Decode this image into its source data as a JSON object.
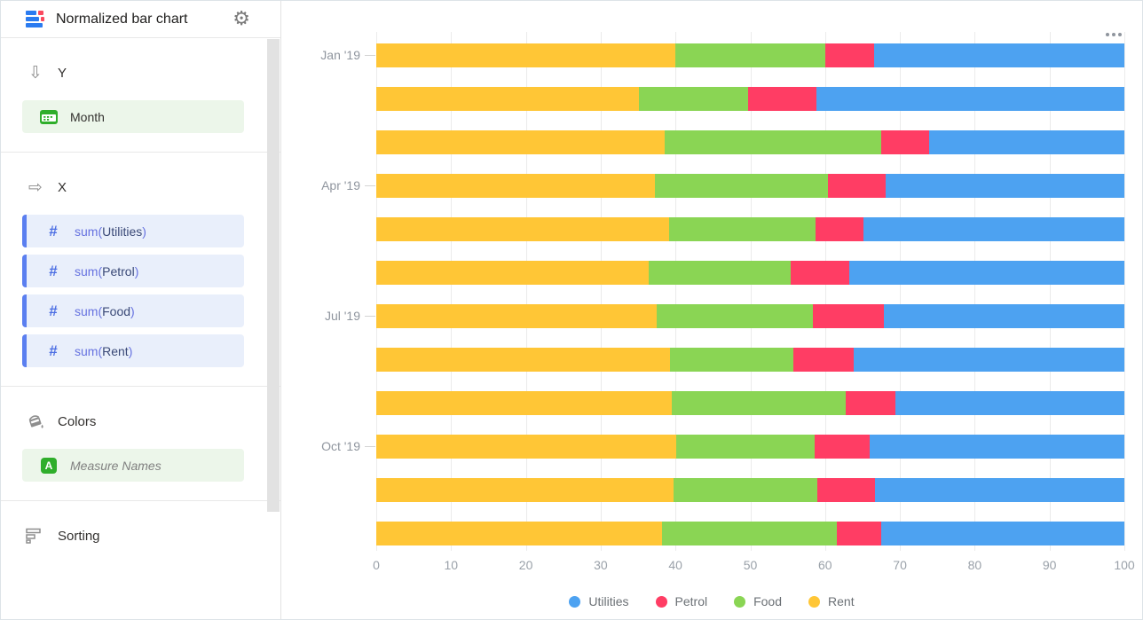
{
  "sidebar": {
    "header": {
      "title": "Normalized bar chart"
    },
    "sections": {
      "y": {
        "label": "Y",
        "arrow_glyph": "⇩",
        "fields": [
          {
            "label": "Month"
          }
        ]
      },
      "x": {
        "label": "X",
        "arrow_glyph": "⇨",
        "icon_glyph": "#",
        "fields": [
          {
            "prefix": "sum(",
            "name": "Utilities",
            "suffix": ")"
          },
          {
            "prefix": "sum(",
            "name": "Petrol",
            "suffix": ")"
          },
          {
            "prefix": "sum(",
            "name": "Food",
            "suffix": ")"
          },
          {
            "prefix": "sum(",
            "name": "Rent",
            "suffix": ")"
          }
        ]
      },
      "colors": {
        "label": "Colors",
        "fields": [
          {
            "label": "Measure Names",
            "icon_glyph": "A"
          }
        ]
      },
      "sorting": {
        "label": "Sorting"
      }
    },
    "gear_glyph": "⚙"
  },
  "chart_data": {
    "type": "bar",
    "orientation": "horizontal",
    "stacked": true,
    "normalized": true,
    "x_axis": {
      "range": [
        0,
        100
      ],
      "ticks": [
        0,
        10,
        20,
        30,
        40,
        50,
        60,
        70,
        80,
        90,
        100
      ]
    },
    "y_axis": {
      "categories_count": 12,
      "tick_labels": [
        "Jan '19",
        "Apr '19",
        "Jul '19",
        "Oct '19"
      ],
      "tick_positions": [
        0,
        3,
        6,
        9
      ]
    },
    "stack_order": [
      "Rent",
      "Food",
      "Petrol",
      "Utilities"
    ],
    "series": [
      {
        "name": "Utilities",
        "color": "#4DA2F1",
        "values": [
          33.4,
          41.2,
          26.1,
          31.9,
          34.9,
          36.8,
          32.2,
          36.2,
          30.6,
          34.0,
          33.3,
          32.5
        ]
      },
      {
        "name": "Petrol",
        "color": "#FF3D64",
        "values": [
          6.6,
          9.1,
          6.4,
          7.7,
          6.4,
          7.8,
          9.4,
          8.0,
          6.7,
          7.4,
          7.8,
          5.9
        ]
      },
      {
        "name": "Food",
        "color": "#8AD554",
        "values": [
          20.0,
          14.6,
          29.0,
          23.1,
          19.6,
          19.0,
          20.9,
          16.5,
          23.2,
          18.5,
          19.2,
          23.4
        ]
      },
      {
        "name": "Rent",
        "color": "#FFC636",
        "values": [
          40.0,
          35.1,
          38.5,
          37.3,
          39.1,
          36.4,
          37.5,
          39.3,
          39.5,
          40.1,
          39.7,
          38.2
        ]
      }
    ],
    "legend": {
      "position": "bottom",
      "items": [
        "Utilities",
        "Petrol",
        "Food",
        "Rent"
      ]
    },
    "grid": "vertical"
  }
}
